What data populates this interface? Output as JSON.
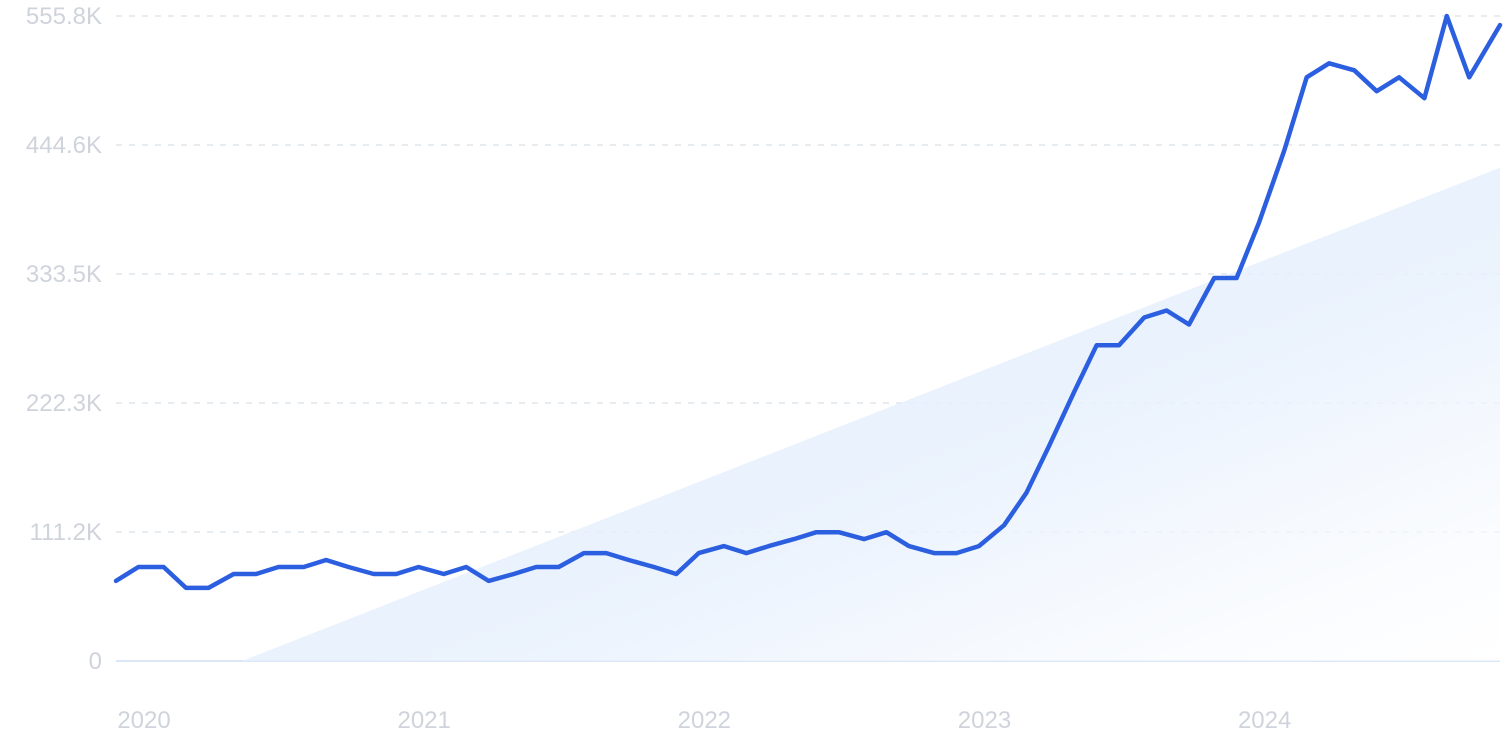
{
  "chart_data": {
    "type": "line",
    "y_ticks": [
      "0",
      "111.2K",
      "222.3K",
      "333.5K",
      "444.6K",
      "555.8K"
    ],
    "y_tick_values": [
      0,
      111200,
      222300,
      333500,
      444600,
      555800
    ],
    "x_ticks": [
      "2020",
      "2021",
      "2022",
      "2023",
      "2024"
    ],
    "x_tick_values": [
      2020.0,
      2021.0,
      2022.0,
      2023.0,
      2024.0
    ],
    "ylim": [
      0,
      555800
    ],
    "xlim": [
      2019.9,
      2024.84
    ],
    "grid": true,
    "trend": {
      "start": [
        2020.35,
        0
      ],
      "end": [
        2024.84,
        425000
      ]
    },
    "series": [
      {
        "color": "#2c5fe0",
        "x": [
          2019.9,
          2019.98,
          2020.07,
          2020.15,
          2020.23,
          2020.32,
          2020.4,
          2020.48,
          2020.57,
          2020.65,
          2020.73,
          2020.82,
          2020.9,
          2020.98,
          2021.07,
          2021.15,
          2021.23,
          2021.32,
          2021.4,
          2021.48,
          2021.57,
          2021.65,
          2021.73,
          2021.82,
          2021.9,
          2021.98,
          2022.07,
          2022.15,
          2022.23,
          2022.32,
          2022.4,
          2022.48,
          2022.57,
          2022.65,
          2022.73,
          2022.82,
          2022.9,
          2022.98,
          2023.07,
          2023.15,
          2023.23,
          2023.32,
          2023.4,
          2023.48,
          2023.57,
          2023.65,
          2023.73,
          2023.82,
          2023.9,
          2023.98,
          2024.07,
          2024.15,
          2024.23,
          2024.32,
          2024.4,
          2024.48,
          2024.57,
          2024.65,
          2024.73,
          2024.84
        ],
        "values": [
          69000,
          81000,
          81000,
          63000,
          63000,
          75000,
          75000,
          81000,
          81000,
          87000,
          81000,
          75000,
          75000,
          81000,
          75000,
          81000,
          69000,
          75000,
          81000,
          81000,
          93000,
          93000,
          87000,
          81000,
          75000,
          93000,
          99000,
          93000,
          99000,
          105000,
          111000,
          111000,
          105000,
          111000,
          99000,
          93000,
          93000,
          99000,
          117000,
          145000,
          185000,
          232000,
          272000,
          272000,
          296000,
          302000,
          290000,
          330000,
          330000,
          378000,
          440000,
          503000,
          515000,
          509000,
          491000,
          503000,
          485000,
          555800,
          503000,
          548000
        ]
      }
    ]
  }
}
